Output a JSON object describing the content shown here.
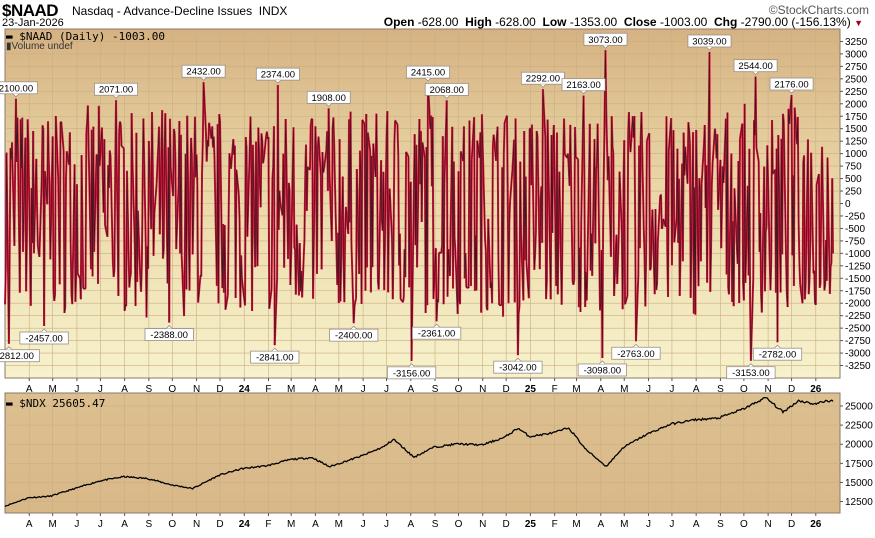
{
  "header": {
    "symbol": "$NAAD",
    "name": "Nasdaq - Advance-Decline Issues",
    "exchange": "INDX",
    "date": "23-Jan-2026",
    "brand": "©StockCharts.com",
    "open_label": "Open",
    "open": "-628.00",
    "high_label": "High",
    "high": "-628.00",
    "low_label": "Low",
    "low": "-1353.00",
    "close_label": "Close",
    "close": "-1003.00",
    "chg_label": "Chg",
    "chg": "-2790.00 (-156.13%)"
  },
  "colors": {
    "up": "#e0103a",
    "line": "#1a1a1a",
    "bg_top": "#d8b484",
    "bg_bottom": "#f6f0ca"
  },
  "chart_data": [
    {
      "type": "line",
      "title": "$NAAD (Daily) -1003.00",
      "legend_secondary": "Volume undef",
      "x_range": [
        "2023-03-01",
        "2026-01-23"
      ],
      "ylim": [
        -3500,
        3500
      ],
      "yticks": [
        3250,
        3000,
        2750,
        2500,
        2250,
        2000,
        1750,
        1500,
        1250,
        1000,
        750,
        500,
        250,
        0,
        -250,
        -500,
        -750,
        -1000,
        -1250,
        -1500,
        -1750,
        -2000,
        -2250,
        -2500,
        -2750,
        -3000,
        -3250
      ],
      "xtick_labels": [
        "A",
        "M",
        "J",
        "J",
        "A",
        "S",
        "O",
        "N",
        "D",
        "24",
        "F",
        "M",
        "A",
        "M",
        "J",
        "J",
        "A",
        "S",
        "O",
        "N",
        "D",
        "25",
        "F",
        "M",
        "A",
        "M",
        "J",
        "J",
        "A",
        "S",
        "O",
        "N",
        "D",
        "26"
      ],
      "last_value": -1003,
      "annotations": [
        {
          "date": "2023-03-06",
          "value": -2812,
          "label": "-2812.00"
        },
        {
          "date": "2023-03-15",
          "value": 2100,
          "label": "2100.00"
        },
        {
          "date": "2023-04-20",
          "value": -2457,
          "label": "-2457.00"
        },
        {
          "date": "2023-07-21",
          "value": 2071,
          "label": "2071.00"
        },
        {
          "date": "2023-09-27",
          "value": -2388,
          "label": "-2388.00"
        },
        {
          "date": "2023-11-10",
          "value": 2432,
          "label": "2432.00"
        },
        {
          "date": "2024-02-09",
          "value": -2841,
          "label": "-2841.00"
        },
        {
          "date": "2024-02-13",
          "value": 2374,
          "label": "2374.00"
        },
        {
          "date": "2024-04-18",
          "value": 1908,
          "label": "1908.00"
        },
        {
          "date": "2024-05-20",
          "value": -2400,
          "label": "-2400.00"
        },
        {
          "date": "2024-08-02",
          "value": -3156,
          "label": "-3156.00"
        },
        {
          "date": "2024-08-23",
          "value": 2415,
          "label": "2415.00"
        },
        {
          "date": "2024-09-03",
          "value": -2361,
          "label": "-2361.00"
        },
        {
          "date": "2024-09-16",
          "value": 2068,
          "label": "2068.00"
        },
        {
          "date": "2024-12-16",
          "value": -3042,
          "label": "-3042.00"
        },
        {
          "date": "2025-01-17",
          "value": 2292,
          "label": "2292.00"
        },
        {
          "date": "2025-03-10",
          "value": 2163,
          "label": "2163.00"
        },
        {
          "date": "2025-04-03",
          "value": -3098,
          "label": "-3098.00"
        },
        {
          "date": "2025-04-07",
          "value": 3073,
          "label": "3073.00"
        },
        {
          "date": "2025-05-16",
          "value": -2763,
          "label": "-2763.00"
        },
        {
          "date": "2025-08-18",
          "value": 3039,
          "label": "3039.00"
        },
        {
          "date": "2025-10-10",
          "value": -3153,
          "label": "-3153.00"
        },
        {
          "date": "2025-10-16",
          "value": 2544,
          "label": "2544.00"
        },
        {
          "date": "2025-11-13",
          "value": -2782,
          "label": "-2782.00"
        },
        {
          "date": "2025-12-01",
          "value": 2176,
          "label": "2176.00"
        }
      ]
    },
    {
      "type": "line",
      "title": "$NDX 25605.47",
      "x_range": [
        "2023-03-01",
        "2026-01-23"
      ],
      "ylim": [
        11000,
        26700
      ],
      "yticks": [
        25000,
        22500,
        20000,
        17500,
        15000,
        12500
      ],
      "xtick_labels": [
        "A",
        "M",
        "J",
        "J",
        "A",
        "S",
        "O",
        "N",
        "D",
        "24",
        "F",
        "M",
        "A",
        "M",
        "J",
        "J",
        "A",
        "S",
        "O",
        "N",
        "D",
        "25",
        "F",
        "M",
        "A",
        "M",
        "J",
        "J",
        "A",
        "S",
        "O",
        "N",
        "D",
        "26"
      ],
      "points": [
        [
          "2023-03-01",
          11900
        ],
        [
          "2023-03-31",
          13000
        ],
        [
          "2023-04-28",
          13200
        ],
        [
          "2023-05-31",
          14250
        ],
        [
          "2023-06-30",
          15200
        ],
        [
          "2023-07-31",
          15750
        ],
        [
          "2023-08-31",
          15500
        ],
        [
          "2023-09-29",
          14700
        ],
        [
          "2023-10-27",
          14200
        ],
        [
          "2023-11-30",
          15950
        ],
        [
          "2023-12-29",
          16800
        ],
        [
          "2024-01-31",
          17200
        ],
        [
          "2024-02-29",
          18000
        ],
        [
          "2024-03-28",
          18250
        ],
        [
          "2024-04-19",
          17050
        ],
        [
          "2024-05-31",
          18500
        ],
        [
          "2024-06-28",
          19700
        ],
        [
          "2024-07-10",
          20650
        ],
        [
          "2024-08-05",
          18300
        ],
        [
          "2024-08-30",
          19600
        ],
        [
          "2024-09-30",
          20050
        ],
        [
          "2024-10-31",
          19900
        ],
        [
          "2024-11-29",
          20900
        ],
        [
          "2024-12-16",
          22100
        ],
        [
          "2024-12-31",
          21000
        ],
        [
          "2025-01-31",
          21500
        ],
        [
          "2025-02-19",
          22150
        ],
        [
          "2025-03-13",
          19300
        ],
        [
          "2025-04-08",
          17100
        ],
        [
          "2025-04-30",
          19600
        ],
        [
          "2025-05-30",
          21300
        ],
        [
          "2025-06-30",
          22650
        ],
        [
          "2025-07-31",
          23200
        ],
        [
          "2025-08-29",
          23400
        ],
        [
          "2025-09-30",
          24600
        ],
        [
          "2025-10-29",
          26100
        ],
        [
          "2025-11-20",
          24200
        ],
        [
          "2025-12-10",
          25700
        ],
        [
          "2025-12-31",
          25250
        ],
        [
          "2026-01-15",
          25700
        ],
        [
          "2026-01-23",
          25605
        ]
      ]
    }
  ]
}
